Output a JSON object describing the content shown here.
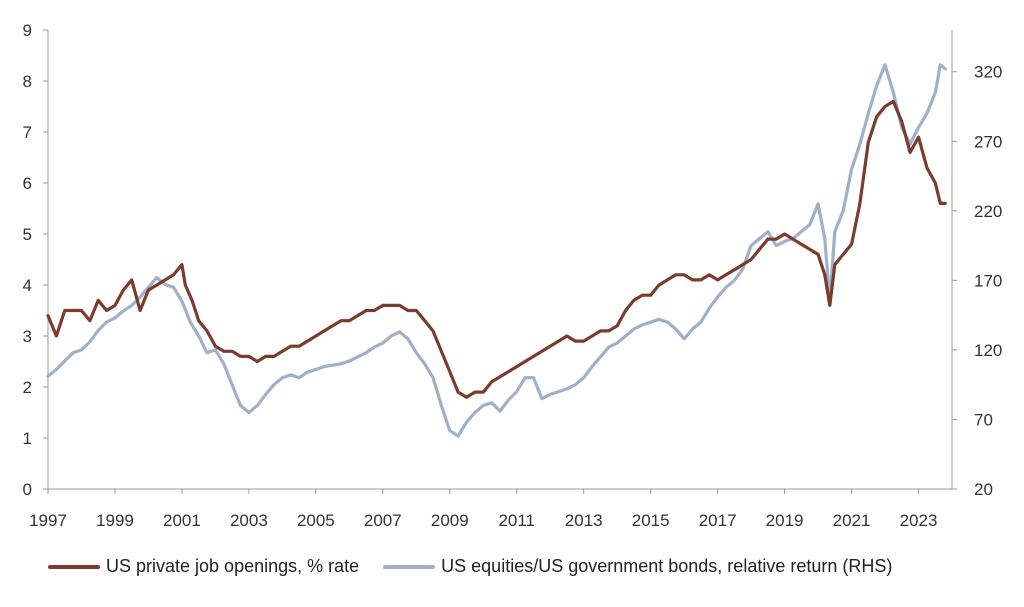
{
  "chart_data": {
    "type": "line",
    "title": "",
    "xlabel": "",
    "ylabel": "",
    "xlim": [
      1997.0,
      2024.0
    ],
    "ylim": [
      0,
      9
    ],
    "y2lim": [
      20,
      350
    ],
    "x_ticks": [
      "1997",
      "1999",
      "2001",
      "2003",
      "2005",
      "2007",
      "2009",
      "2011",
      "2013",
      "2015",
      "2017",
      "2019",
      "2021",
      "2023"
    ],
    "y_ticks": [
      "0",
      "1",
      "2",
      "3",
      "4",
      "5",
      "6",
      "7",
      "8",
      "9"
    ],
    "y2_ticks": [
      "20",
      "70",
      "120",
      "170",
      "220",
      "270",
      "320"
    ],
    "legend_position": "bottom",
    "series": [
      {
        "name": "US private job openings, % rate",
        "axis": "left",
        "color": "#7b3b2e",
        "points": [
          [
            1997.0,
            3.4
          ],
          [
            1997.25,
            3.0
          ],
          [
            1997.5,
            3.5
          ],
          [
            1997.75,
            3.5
          ],
          [
            1998.0,
            3.5
          ],
          [
            1998.25,
            3.3
          ],
          [
            1998.5,
            3.7
          ],
          [
            1998.75,
            3.5
          ],
          [
            1999.0,
            3.6
          ],
          [
            1999.25,
            3.9
          ],
          [
            1999.5,
            4.1
          ],
          [
            1999.75,
            3.5
          ],
          [
            2000.0,
            3.9
          ],
          [
            2000.25,
            4.0
          ],
          [
            2000.5,
            4.1
          ],
          [
            2000.75,
            4.2
          ],
          [
            2001.0,
            4.4
          ],
          [
            2001.1,
            4.0
          ],
          [
            2001.3,
            3.7
          ],
          [
            2001.5,
            3.3
          ],
          [
            2001.75,
            3.1
          ],
          [
            2002.0,
            2.8
          ],
          [
            2002.25,
            2.7
          ],
          [
            2002.5,
            2.7
          ],
          [
            2002.75,
            2.6
          ],
          [
            2003.0,
            2.6
          ],
          [
            2003.25,
            2.5
          ],
          [
            2003.5,
            2.6
          ],
          [
            2003.75,
            2.6
          ],
          [
            2004.0,
            2.7
          ],
          [
            2004.25,
            2.8
          ],
          [
            2004.5,
            2.8
          ],
          [
            2004.75,
            2.9
          ],
          [
            2005.0,
            3.0
          ],
          [
            2005.25,
            3.1
          ],
          [
            2005.5,
            3.2
          ],
          [
            2005.75,
            3.3
          ],
          [
            2006.0,
            3.3
          ],
          [
            2006.25,
            3.4
          ],
          [
            2006.5,
            3.5
          ],
          [
            2006.75,
            3.5
          ],
          [
            2007.0,
            3.6
          ],
          [
            2007.25,
            3.6
          ],
          [
            2007.5,
            3.6
          ],
          [
            2007.75,
            3.5
          ],
          [
            2008.0,
            3.5
          ],
          [
            2008.25,
            3.3
          ],
          [
            2008.5,
            3.1
          ],
          [
            2008.75,
            2.7
          ],
          [
            2009.0,
            2.3
          ],
          [
            2009.25,
            1.9
          ],
          [
            2009.5,
            1.8
          ],
          [
            2009.75,
            1.9
          ],
          [
            2010.0,
            1.9
          ],
          [
            2010.25,
            2.1
          ],
          [
            2010.5,
            2.2
          ],
          [
            2010.75,
            2.3
          ],
          [
            2011.0,
            2.4
          ],
          [
            2011.25,
            2.5
          ],
          [
            2011.5,
            2.6
          ],
          [
            2011.75,
            2.7
          ],
          [
            2012.0,
            2.8
          ],
          [
            2012.25,
            2.9
          ],
          [
            2012.5,
            3.0
          ],
          [
            2012.75,
            2.9
          ],
          [
            2013.0,
            2.9
          ],
          [
            2013.25,
            3.0
          ],
          [
            2013.5,
            3.1
          ],
          [
            2013.75,
            3.1
          ],
          [
            2014.0,
            3.2
          ],
          [
            2014.25,
            3.5
          ],
          [
            2014.5,
            3.7
          ],
          [
            2014.75,
            3.8
          ],
          [
            2015.0,
            3.8
          ],
          [
            2015.25,
            4.0
          ],
          [
            2015.5,
            4.1
          ],
          [
            2015.75,
            4.2
          ],
          [
            2016.0,
            4.2
          ],
          [
            2016.25,
            4.1
          ],
          [
            2016.5,
            4.1
          ],
          [
            2016.75,
            4.2
          ],
          [
            2017.0,
            4.1
          ],
          [
            2017.25,
            4.2
          ],
          [
            2017.5,
            4.3
          ],
          [
            2017.75,
            4.4
          ],
          [
            2018.0,
            4.5
          ],
          [
            2018.25,
            4.7
          ],
          [
            2018.5,
            4.9
          ],
          [
            2018.75,
            4.9
          ],
          [
            2019.0,
            5.0
          ],
          [
            2019.25,
            4.9
          ],
          [
            2019.5,
            4.8
          ],
          [
            2019.75,
            4.7
          ],
          [
            2020.0,
            4.6
          ],
          [
            2020.2,
            4.2
          ],
          [
            2020.35,
            3.6
          ],
          [
            2020.5,
            4.4
          ],
          [
            2020.75,
            4.6
          ],
          [
            2021.0,
            4.8
          ],
          [
            2021.25,
            5.6
          ],
          [
            2021.5,
            6.8
          ],
          [
            2021.75,
            7.3
          ],
          [
            2022.0,
            7.5
          ],
          [
            2022.25,
            7.6
          ],
          [
            2022.5,
            7.2
          ],
          [
            2022.75,
            6.6
          ],
          [
            2023.0,
            6.9
          ],
          [
            2023.25,
            6.3
          ],
          [
            2023.5,
            6.0
          ],
          [
            2023.65,
            5.6
          ],
          [
            2023.8,
            5.6
          ]
        ]
      },
      {
        "name": "US equities/US government bonds, relative return (RHS)",
        "axis": "right",
        "color": "#9fb0c8",
        "points": [
          [
            1997.0,
            101
          ],
          [
            1997.25,
            106
          ],
          [
            1997.5,
            112
          ],
          [
            1997.75,
            118
          ],
          [
            1998.0,
            120
          ],
          [
            1998.25,
            126
          ],
          [
            1998.5,
            134
          ],
          [
            1998.75,
            140
          ],
          [
            1999.0,
            143
          ],
          [
            1999.25,
            148
          ],
          [
            1999.5,
            152
          ],
          [
            1999.75,
            158
          ],
          [
            2000.0,
            165
          ],
          [
            2000.25,
            172
          ],
          [
            2000.5,
            167
          ],
          [
            2000.75,
            165
          ],
          [
            2001.0,
            155
          ],
          [
            2001.25,
            140
          ],
          [
            2001.5,
            130
          ],
          [
            2001.75,
            118
          ],
          [
            2002.0,
            120
          ],
          [
            2002.25,
            110
          ],
          [
            2002.5,
            95
          ],
          [
            2002.75,
            80
          ],
          [
            2003.0,
            75
          ],
          [
            2003.25,
            80
          ],
          [
            2003.5,
            88
          ],
          [
            2003.75,
            95
          ],
          [
            2004.0,
            100
          ],
          [
            2004.25,
            102
          ],
          [
            2004.5,
            100
          ],
          [
            2004.75,
            104
          ],
          [
            2005.0,
            106
          ],
          [
            2005.25,
            108
          ],
          [
            2005.5,
            109
          ],
          [
            2005.75,
            110
          ],
          [
            2006.0,
            112
          ],
          [
            2006.25,
            115
          ],
          [
            2006.5,
            118
          ],
          [
            2006.75,
            122
          ],
          [
            2007.0,
            125
          ],
          [
            2007.25,
            130
          ],
          [
            2007.5,
            133
          ],
          [
            2007.75,
            128
          ],
          [
            2008.0,
            118
          ],
          [
            2008.25,
            110
          ],
          [
            2008.5,
            100
          ],
          [
            2008.75,
            80
          ],
          [
            2009.0,
            62
          ],
          [
            2009.25,
            58
          ],
          [
            2009.5,
            68
          ],
          [
            2009.75,
            75
          ],
          [
            2010.0,
            80
          ],
          [
            2010.25,
            82
          ],
          [
            2010.5,
            76
          ],
          [
            2010.75,
            84
          ],
          [
            2011.0,
            90
          ],
          [
            2011.25,
            100
          ],
          [
            2011.5,
            100
          ],
          [
            2011.75,
            85
          ],
          [
            2012.0,
            88
          ],
          [
            2012.25,
            90
          ],
          [
            2012.5,
            92
          ],
          [
            2012.75,
            95
          ],
          [
            2013.0,
            100
          ],
          [
            2013.25,
            108
          ],
          [
            2013.5,
            115
          ],
          [
            2013.75,
            122
          ],
          [
            2014.0,
            125
          ],
          [
            2014.25,
            130
          ],
          [
            2014.5,
            135
          ],
          [
            2014.75,
            138
          ],
          [
            2015.0,
            140
          ],
          [
            2015.25,
            142
          ],
          [
            2015.5,
            140
          ],
          [
            2015.75,
            135
          ],
          [
            2016.0,
            128
          ],
          [
            2016.25,
            135
          ],
          [
            2016.5,
            140
          ],
          [
            2016.75,
            150
          ],
          [
            2017.0,
            158
          ],
          [
            2017.25,
            165
          ],
          [
            2017.5,
            170
          ],
          [
            2017.75,
            178
          ],
          [
            2018.0,
            195
          ],
          [
            2018.25,
            200
          ],
          [
            2018.5,
            205
          ],
          [
            2018.75,
            195
          ],
          [
            2019.0,
            198
          ],
          [
            2019.25,
            200
          ],
          [
            2019.5,
            205
          ],
          [
            2019.75,
            210
          ],
          [
            2020.0,
            225
          ],
          [
            2020.2,
            200
          ],
          [
            2020.35,
            155
          ],
          [
            2020.5,
            205
          ],
          [
            2020.75,
            220
          ],
          [
            2021.0,
            250
          ],
          [
            2021.25,
            268
          ],
          [
            2021.5,
            290
          ],
          [
            2021.75,
            310
          ],
          [
            2022.0,
            325
          ],
          [
            2022.25,
            305
          ],
          [
            2022.5,
            280
          ],
          [
            2022.75,
            268
          ],
          [
            2023.0,
            280
          ],
          [
            2023.25,
            290
          ],
          [
            2023.5,
            305
          ],
          [
            2023.65,
            325
          ],
          [
            2023.8,
            322
          ]
        ]
      }
    ]
  }
}
